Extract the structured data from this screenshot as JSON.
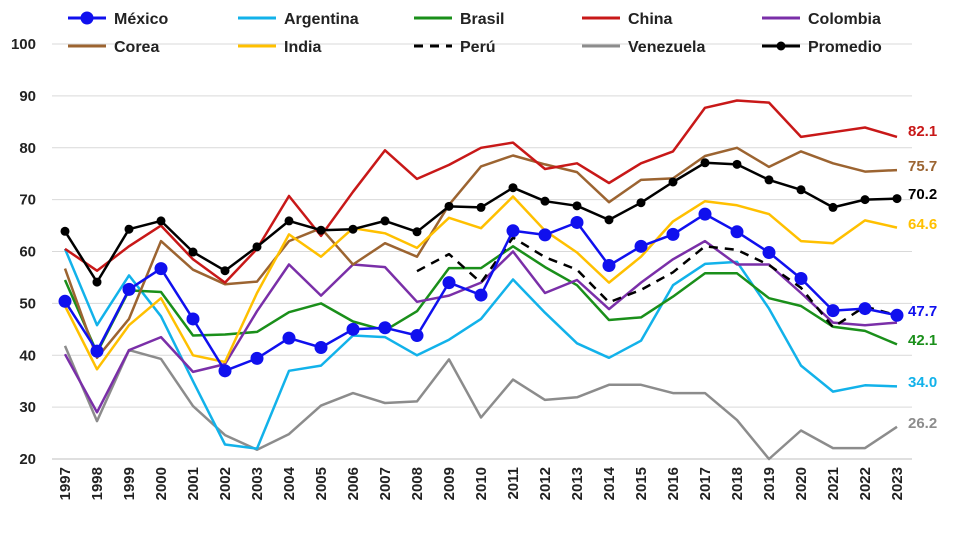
{
  "chart_data": {
    "type": "line",
    "categories": [
      "1997",
      "1998",
      "1999",
      "2000",
      "2001",
      "2002",
      "2003",
      "2004",
      "2005",
      "2006",
      "2007",
      "2008",
      "2009",
      "2010",
      "2011",
      "2012",
      "2013",
      "2014",
      "2015",
      "2016",
      "2017",
      "2018",
      "2019",
      "2020",
      "2021",
      "2022",
      "2023"
    ],
    "ylim": [
      20,
      100
    ],
    "yticks": [
      20,
      30,
      40,
      50,
      60,
      70,
      80,
      90,
      100
    ],
    "grid": "horizontal",
    "legend_position": "top",
    "series": [
      {
        "name": "México",
        "color": "#1010ee",
        "style": "marker",
        "end_label": "47.7",
        "values": [
          50.4,
          40.8,
          52.7,
          56.7,
          47.0,
          37.0,
          39.4,
          43.3,
          41.5,
          45.0,
          45.3,
          43.8,
          54.0,
          51.6,
          64.0,
          63.2,
          65.6,
          57.3,
          61.0,
          63.3,
          67.2,
          63.8,
          59.8,
          54.8,
          48.6,
          49.0,
          47.7
        ]
      },
      {
        "name": "Argentina",
        "color": "#12b2ea",
        "style": "solid",
        "end_label": "34.0",
        "values": [
          60.5,
          45.8,
          55.4,
          47.5,
          35.0,
          22.8,
          22.0,
          37.0,
          38.0,
          43.8,
          43.5,
          40.0,
          43.0,
          47.0,
          54.6,
          48.2,
          42.3,
          39.5,
          42.8,
          53.5,
          57.6,
          58.0,
          49.0,
          38.0,
          33.0,
          34.2,
          34.0
        ]
      },
      {
        "name": "Brasil",
        "color": "#1a8f1a",
        "style": "solid",
        "end_label": "42.1",
        "values": [
          54.5,
          40.5,
          52.5,
          52.2,
          43.8,
          44.0,
          44.5,
          48.3,
          50.0,
          46.5,
          44.8,
          48.5,
          56.8,
          56.8,
          61.0,
          57.0,
          53.5,
          46.8,
          47.3,
          51.3,
          55.8,
          55.8,
          51.0,
          49.5,
          45.5,
          44.7,
          42.1
        ]
      },
      {
        "name": "China",
        "color": "#c81818",
        "style": "solid",
        "end_label": "82.1",
        "values": [
          60.5,
          56.3,
          61.0,
          65.0,
          58.5,
          54.0,
          60.5,
          70.7,
          63.0,
          71.5,
          79.5,
          74.0,
          76.7,
          80.0,
          81.0,
          75.9,
          77.0,
          73.2,
          77.0,
          79.3,
          87.7,
          89.1,
          88.7,
          82.1,
          83.0,
          83.9,
          82.1
        ]
      },
      {
        "name": "Colombia",
        "color": "#7a2fa8",
        "style": "solid",
        "end_label": "",
        "values": [
          40.2,
          29.0,
          41.0,
          43.5,
          36.8,
          38.3,
          48.5,
          57.5,
          51.5,
          57.5,
          57.0,
          50.3,
          51.5,
          54.0,
          60.0,
          52.0,
          54.5,
          48.9,
          54.0,
          58.5,
          62.0,
          57.5,
          57.5,
          52.0,
          46.3,
          45.8,
          46.3
        ]
      },
      {
        "name": "Corea",
        "color": "#9c6431",
        "style": "solid",
        "end_label": "75.7",
        "values": [
          56.7,
          39.5,
          47.0,
          62.0,
          56.5,
          53.7,
          54.2,
          62.0,
          64.5,
          57.5,
          61.6,
          59.0,
          69.0,
          76.4,
          78.5,
          76.8,
          75.3,
          69.5,
          73.8,
          74.1,
          78.4,
          80.0,
          76.3,
          79.3,
          77.0,
          75.4,
          75.7
        ]
      },
      {
        "name": "India",
        "color": "#ffc000",
        "style": "solid",
        "end_label": "64.6",
        "values": [
          49.5,
          37.3,
          45.8,
          51.0,
          40.0,
          38.7,
          52.0,
          63.3,
          59.0,
          64.5,
          63.5,
          60.7,
          66.5,
          64.5,
          70.6,
          64.0,
          59.8,
          54.0,
          59.0,
          65.8,
          69.7,
          68.9,
          67.2,
          62.0,
          61.6,
          66.0,
          64.6
        ]
      },
      {
        "name": "Perú",
        "color": "#000000",
        "style": "dashed",
        "end_label": "",
        "values": [
          null,
          null,
          null,
          null,
          null,
          null,
          null,
          null,
          null,
          null,
          null,
          56.2,
          59.5,
          54.0,
          62.7,
          58.9,
          56.5,
          50.2,
          52.6,
          56.0,
          61.0,
          60.3,
          57.4,
          53.0,
          45.4,
          49.4,
          47.7
        ]
      },
      {
        "name": "Venezuela",
        "color": "#8c8c8c",
        "style": "solid",
        "end_label": "26.2",
        "values": [
          41.8,
          27.3,
          41.0,
          39.3,
          30.2,
          24.6,
          21.8,
          24.8,
          30.3,
          32.7,
          30.8,
          31.1,
          39.2,
          28.0,
          35.3,
          31.4,
          31.9,
          34.3,
          34.3,
          32.7,
          32.7,
          27.5,
          20.0,
          25.5,
          22.1,
          22.1,
          26.2
        ]
      },
      {
        "name": "Promedio",
        "color": "#000000",
        "style": "solid-marker-small",
        "end_label": "70.2",
        "values": [
          63.9,
          54.1,
          64.3,
          65.9,
          59.9,
          56.3,
          60.9,
          65.9,
          64.1,
          64.3,
          65.9,
          63.8,
          68.7,
          68.5,
          72.3,
          69.7,
          68.8,
          66.1,
          69.4,
          73.4,
          77.1,
          76.8,
          73.8,
          71.9,
          68.5,
          70.0,
          70.2
        ]
      }
    ]
  }
}
